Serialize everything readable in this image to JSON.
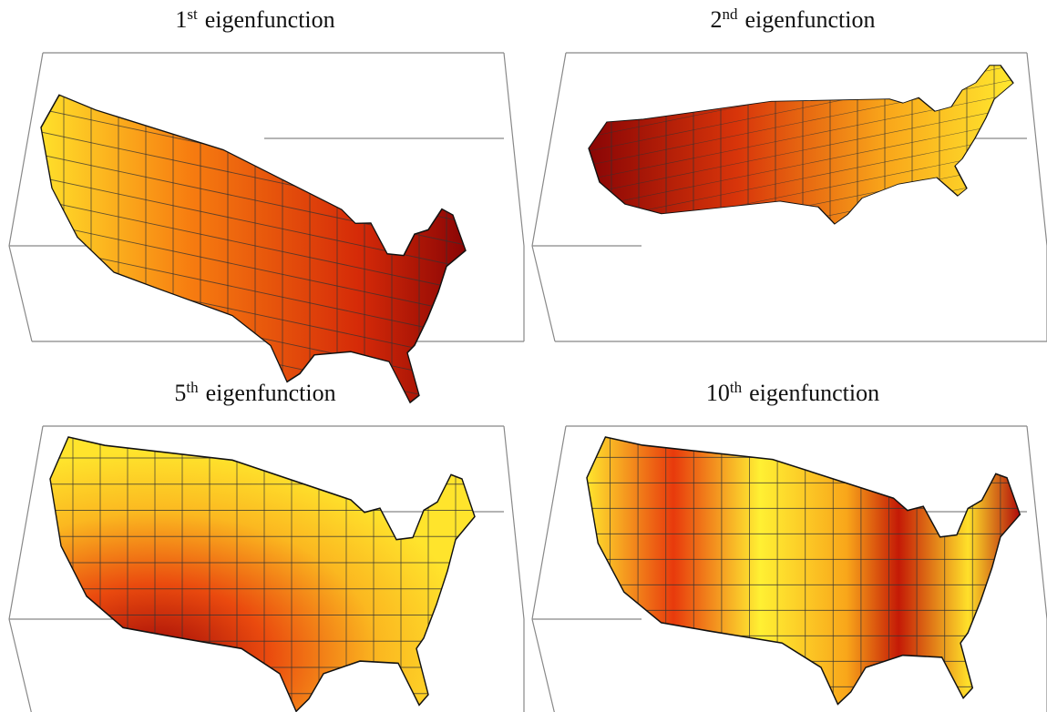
{
  "panels": [
    {
      "number": "1",
      "suffix": "st",
      "label": "eigenfunction"
    },
    {
      "number": "2",
      "suffix": "nd",
      "label": "eigenfunction"
    },
    {
      "number": "5",
      "suffix": "th",
      "label": "eigenfunction"
    },
    {
      "number": "10",
      "suffix": "th",
      "label": "eigenfunction"
    }
  ]
}
